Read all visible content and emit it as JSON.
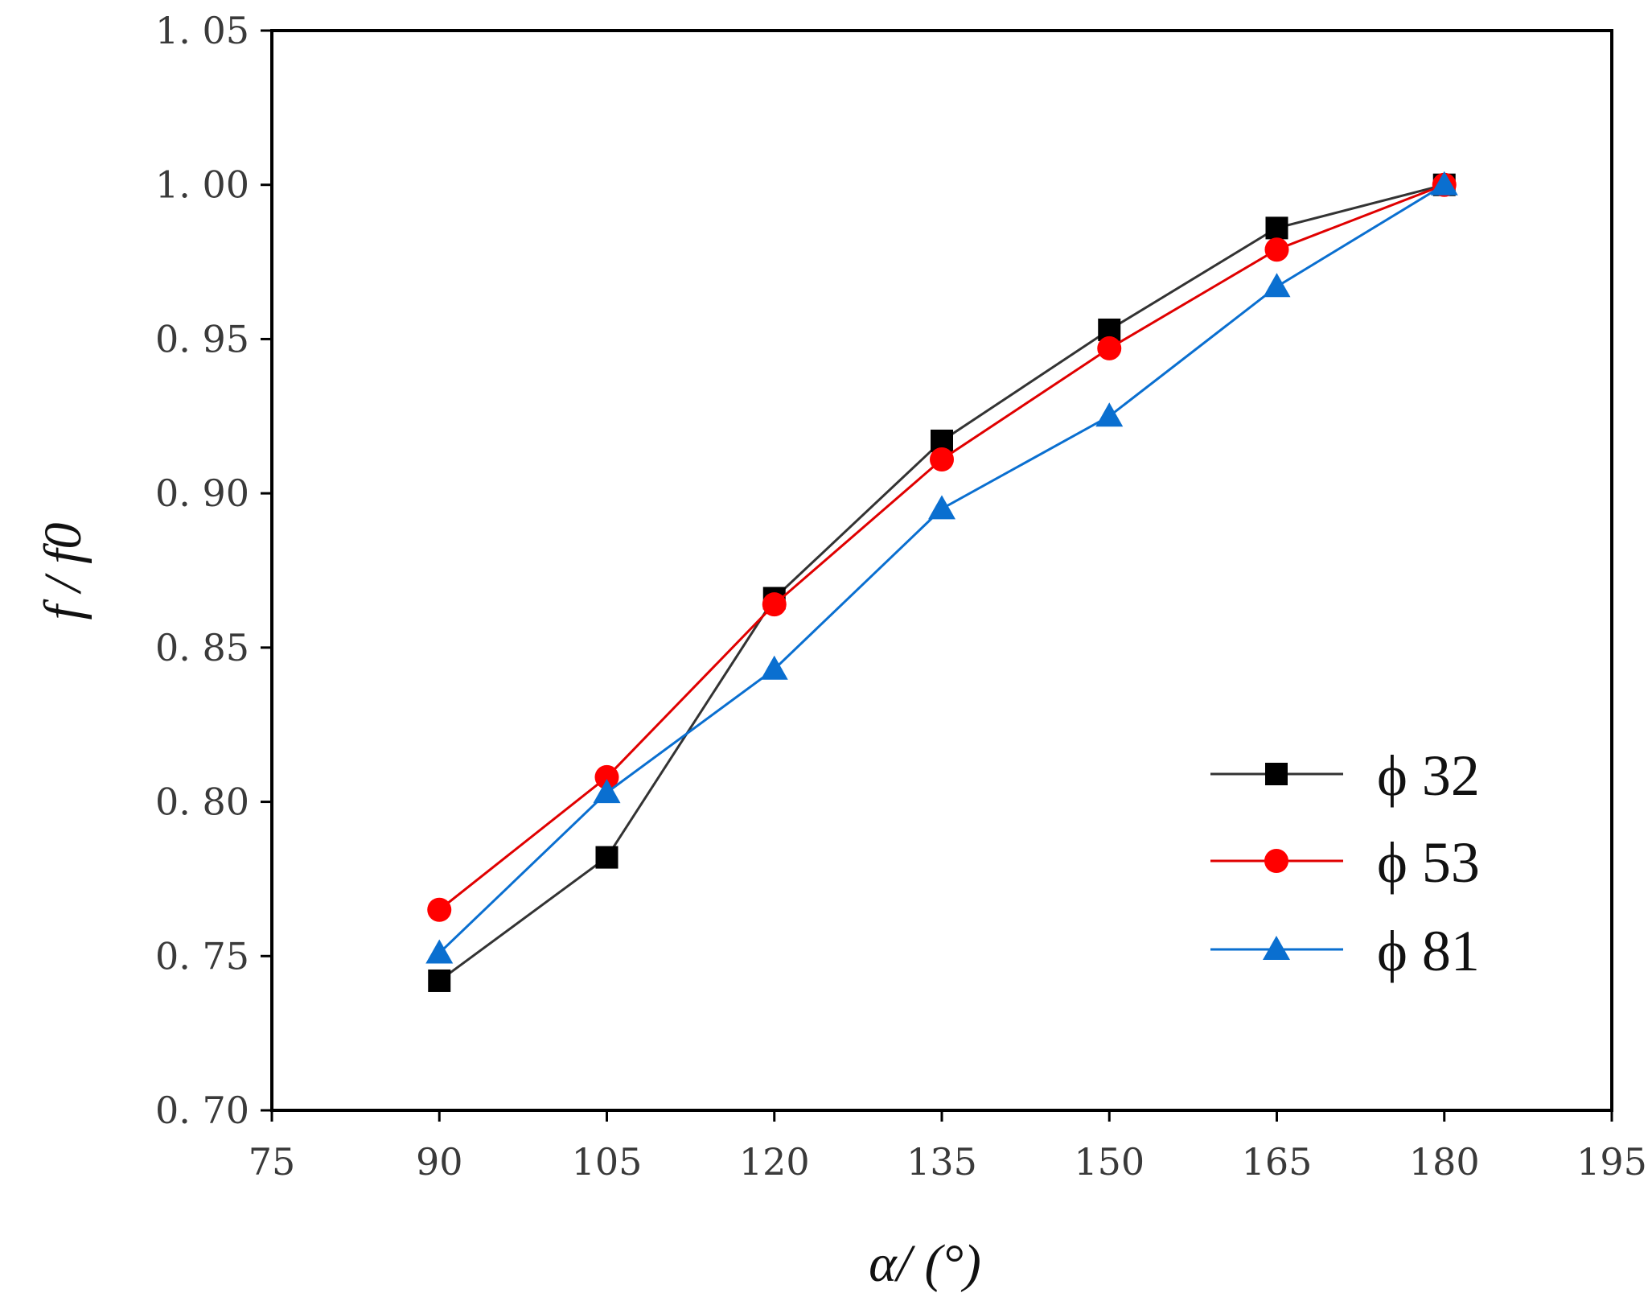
{
  "chart_data": {
    "type": "line",
    "title": "",
    "xlabel": "α/ (°)",
    "ylabel": "f / f0",
    "xlim": [
      75,
      195
    ],
    "ylim": [
      0.7,
      1.05
    ],
    "x_ticks": [
      75,
      90,
      105,
      120,
      135,
      150,
      165,
      180,
      195
    ],
    "x_tick_labels": [
      "75",
      "90",
      "105",
      "120",
      "135",
      "150",
      "165",
      "180",
      "195"
    ],
    "y_ticks": [
      0.7,
      0.75,
      0.8,
      0.85,
      0.9,
      0.95,
      1.0,
      1.05
    ],
    "y_tick_labels": [
      "0. 70",
      "0. 75",
      "0. 80",
      "0. 85",
      "0. 90",
      "0. 95",
      "1. 00",
      "1. 05"
    ],
    "grid": false,
    "legend_position": "bottom-right",
    "x": [
      90,
      105,
      120,
      135,
      150,
      165,
      180
    ],
    "series": [
      {
        "name": "ϕ 32",
        "color": "#000000",
        "line_color": "#333333",
        "marker": "square",
        "values": [
          0.742,
          0.782,
          0.866,
          0.917,
          0.953,
          0.986,
          1.0
        ]
      },
      {
        "name": "ϕ 53",
        "color": "#ff0000",
        "line_color": "#e00000",
        "marker": "circle",
        "values": [
          0.765,
          0.808,
          0.864,
          0.911,
          0.947,
          0.979,
          1.0
        ]
      },
      {
        "name": "ϕ 81",
        "color": "#0a6fd0",
        "line_color": "#0a6fd0",
        "marker": "triangle",
        "values": [
          0.751,
          0.803,
          0.843,
          0.895,
          0.925,
          0.967,
          1.0
        ]
      }
    ]
  }
}
